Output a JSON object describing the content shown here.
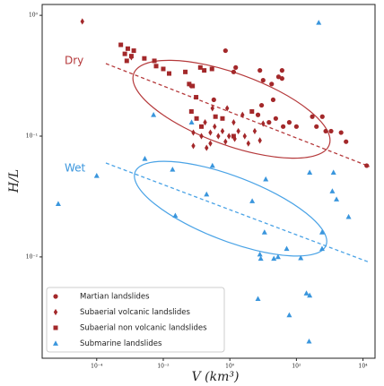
{
  "chart_data": {
    "type": "scatter",
    "xlabel": "V (km³)",
    "ylabel": "H/L",
    "annotations": [
      "Dry",
      "Wet"
    ],
    "xscale": "log",
    "yscale": "log",
    "xlim": [
      2.3e-06,
      23000
    ],
    "ylim": [
      0.00145,
      1.23
    ],
    "xticks": [
      {
        "value": 0.0001,
        "label": "10⁻⁴"
      },
      {
        "value": 0.01,
        "label": "10⁻²"
      },
      {
        "value": 1,
        "label": "10⁰"
      },
      {
        "value": 100,
        "label": "10²"
      },
      {
        "value": 10000,
        "label": "10⁴"
      }
    ],
    "yticks": [
      {
        "value": 0.01,
        "label": "10⁻²"
      },
      {
        "value": 0.1,
        "label": "10⁻¹"
      },
      {
        "value": 1,
        "label": "10⁰"
      }
    ],
    "legend": "lower left",
    "series": [
      {
        "name": "Martian landslides",
        "color": "#a3282a",
        "marker": "circle",
        "x": [
          0.74,
          1.5,
          1.3,
          8,
          10,
          37,
          37,
          29,
          18,
          9,
          20,
          7,
          15,
          24,
          40,
          61,
          100,
          300,
          400,
          600,
          760,
          1100,
          2200,
          3100,
          12900,
          0.33,
          0.07
        ],
        "values": [
          0.51,
          0.37,
          0.34,
          0.35,
          0.29,
          0.35,
          0.3,
          0.31,
          0.27,
          0.18,
          0.2,
          0.15,
          0.13,
          0.14,
          0.12,
          0.13,
          0.12,
          0.145,
          0.12,
          0.145,
          0.11,
          0.11,
          0.107,
          0.09,
          0.057,
          0.2,
          0.26
        ]
      },
      {
        "name": "Subaerial volcanic landslides",
        "color": "#a3282a",
        "marker": "diamond",
        "x": [
          3.7e-05,
          0.0011,
          0.08,
          0.08,
          0.14,
          0.18,
          0.26,
          0.26,
          0.35,
          0.45,
          0.6,
          0.74,
          0.94,
          1.3,
          1.4,
          1.8,
          2.4,
          2.8,
          3.6,
          5.6,
          8,
          10,
          0.83,
          0.3,
          0.2
        ],
        "values": [
          0.89,
          0.45,
          0.107,
          0.083,
          0.1,
          0.13,
          0.107,
          0.087,
          0.12,
          0.1,
          0.11,
          0.09,
          0.1,
          0.13,
          0.095,
          0.11,
          0.15,
          0.1,
          0.087,
          0.11,
          0.092,
          0.127,
          0.17,
          0.17,
          0.08
        ]
      },
      {
        "name": "Subaerial non volcanic landslides",
        "color": "#a3282a",
        "marker": "square",
        "x": [
          0.00053,
          0.00086,
          0.0007,
          0.0011,
          0.0013,
          0.0008,
          0.0027,
          0.0054,
          0.0061,
          0.01,
          0.015,
          0.046,
          0.06,
          0.076,
          0.097,
          0.13,
          0.17,
          0.29,
          0.07,
          0.1,
          0.14,
          0.37,
          0.6,
          1.3,
          4.6
        ],
        "values": [
          0.57,
          0.53,
          0.48,
          0.46,
          0.51,
          0.42,
          0.44,
          0.42,
          0.38,
          0.36,
          0.33,
          0.34,
          0.27,
          0.26,
          0.21,
          0.37,
          0.35,
          0.36,
          0.16,
          0.14,
          0.12,
          0.145,
          0.14,
          0.1,
          0.16
        ]
      },
      {
        "name": "Submarine landslides",
        "color": "#3a96dd",
        "marker": "triangle",
        "x": [
          7e-06,
          468,
          0.0051,
          0.071,
          0.0028,
          0.0001,
          0.019,
          0.023,
          0.3,
          0.2,
          4.7,
          12,
          11,
          8,
          8.5,
          21,
          51,
          28,
          135,
          250,
          590,
          590,
          1300,
          1200,
          1600,
          3700,
          7,
          250,
          200,
          61,
          240
        ],
        "values": [
          0.0275,
          0.87,
          0.15,
          0.13,
          0.065,
          0.047,
          0.053,
          0.022,
          0.057,
          0.033,
          0.029,
          0.044,
          0.016,
          0.0105,
          0.0097,
          0.0097,
          0.0117,
          0.01,
          0.0098,
          0.05,
          0.016,
          0.0117,
          0.05,
          0.035,
          0.03,
          0.0215,
          0.0045,
          0.0048,
          0.005,
          0.0033,
          0.002
        ]
      }
    ]
  }
}
